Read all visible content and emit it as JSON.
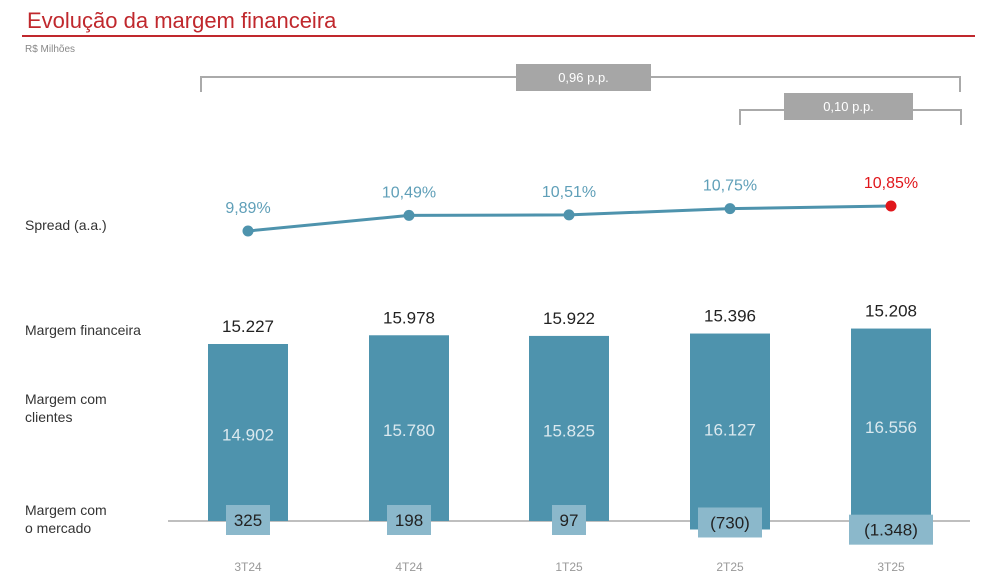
{
  "title": "Evolução da margem financeira",
  "unit": "R$ Milhões",
  "row_labels": {
    "spread": "Spread (a.a.)",
    "total": "Margem financeira",
    "clients_1": "Margem com",
    "clients_2": "clientes",
    "market_1": "Margem com",
    "market_2": "o mercado"
  },
  "colors": {
    "title": "#c0282d",
    "bar": "#4e93ad",
    "market_box": "#8bb8cb",
    "line": "#4e93ad",
    "highlight": "#e0161b",
    "bracket": "#aaaaaa",
    "badge": "#a6a6a6"
  },
  "chart_data": {
    "type": "bar",
    "title": "Evolução da margem financeira",
    "categories": [
      "3T24",
      "4T24",
      "1T25",
      "2T25",
      "3T25"
    ],
    "series": [
      {
        "name": "Margem financeira",
        "values": [
          15227,
          15978,
          15922,
          15396,
          15208
        ],
        "labels": [
          "15.227",
          "15.978",
          "15.922",
          "15.396",
          "15.208"
        ]
      },
      {
        "name": "Margem com clientes",
        "values": [
          14902,
          15780,
          15825,
          16127,
          16556
        ],
        "labels": [
          "14.902",
          "15.780",
          "15.825",
          "16.127",
          "16.556"
        ]
      },
      {
        "name": "Margem com o mercado",
        "values": [
          325,
          198,
          97,
          -730,
          -1348
        ],
        "labels": [
          "325",
          "198",
          "97",
          "(730)",
          "(1.348)"
        ]
      },
      {
        "name": "Spread (a.a.)",
        "type": "line",
        "values": [
          9.89,
          10.49,
          10.51,
          10.75,
          10.85
        ],
        "labels": [
          "9,89%",
          "10,49%",
          "10,51%",
          "10,75%",
          "10,85%"
        ]
      }
    ],
    "annotations": [
      {
        "from": "3T24",
        "to": "3T25",
        "text": "0,96 p.p."
      },
      {
        "from": "2T25",
        "to": "3T25",
        "text": "0,10 p.p."
      }
    ]
  }
}
